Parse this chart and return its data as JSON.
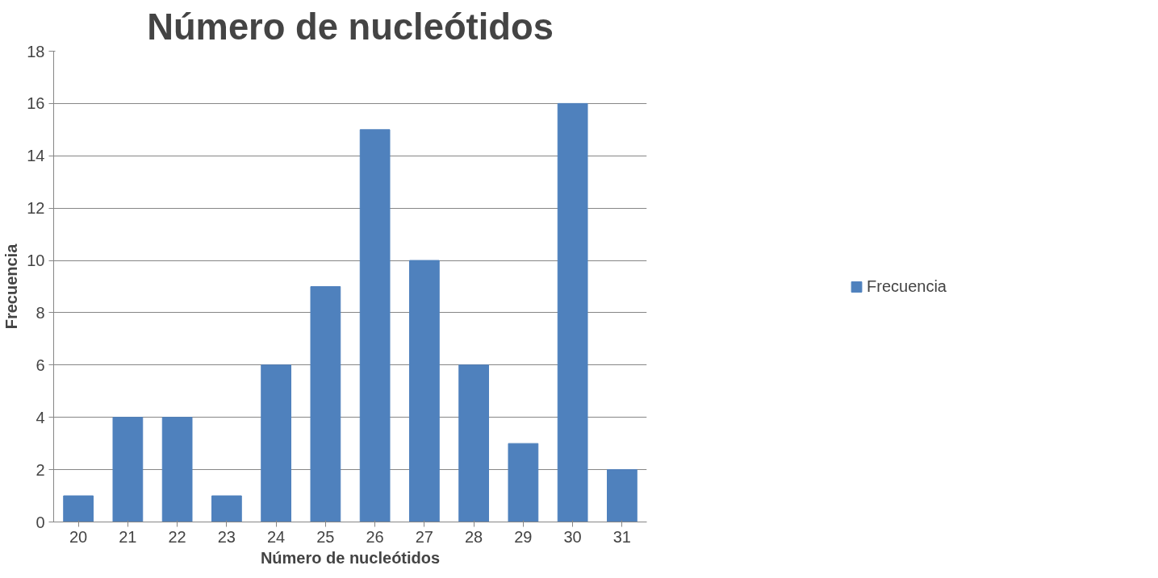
{
  "chart_data": {
    "type": "bar",
    "title": "Número de nucleótidos",
    "xlabel": "Número de nucleótidos",
    "ylabel": "Frecuencia",
    "categories": [
      "20",
      "21",
      "22",
      "23",
      "24",
      "25",
      "26",
      "27",
      "28",
      "29",
      "30",
      "31"
    ],
    "series": [
      {
        "name": "Frecuencia",
        "color": "#4f81bd",
        "values": [
          1,
          4,
          4,
          1,
          6,
          9,
          15,
          10,
          6,
          3,
          16,
          2
        ]
      }
    ],
    "ylim": [
      0,
      18
    ],
    "yticks": [
      0,
      2,
      4,
      6,
      8,
      10,
      12,
      14,
      16,
      18
    ],
    "grid": "y",
    "legend": "right"
  }
}
